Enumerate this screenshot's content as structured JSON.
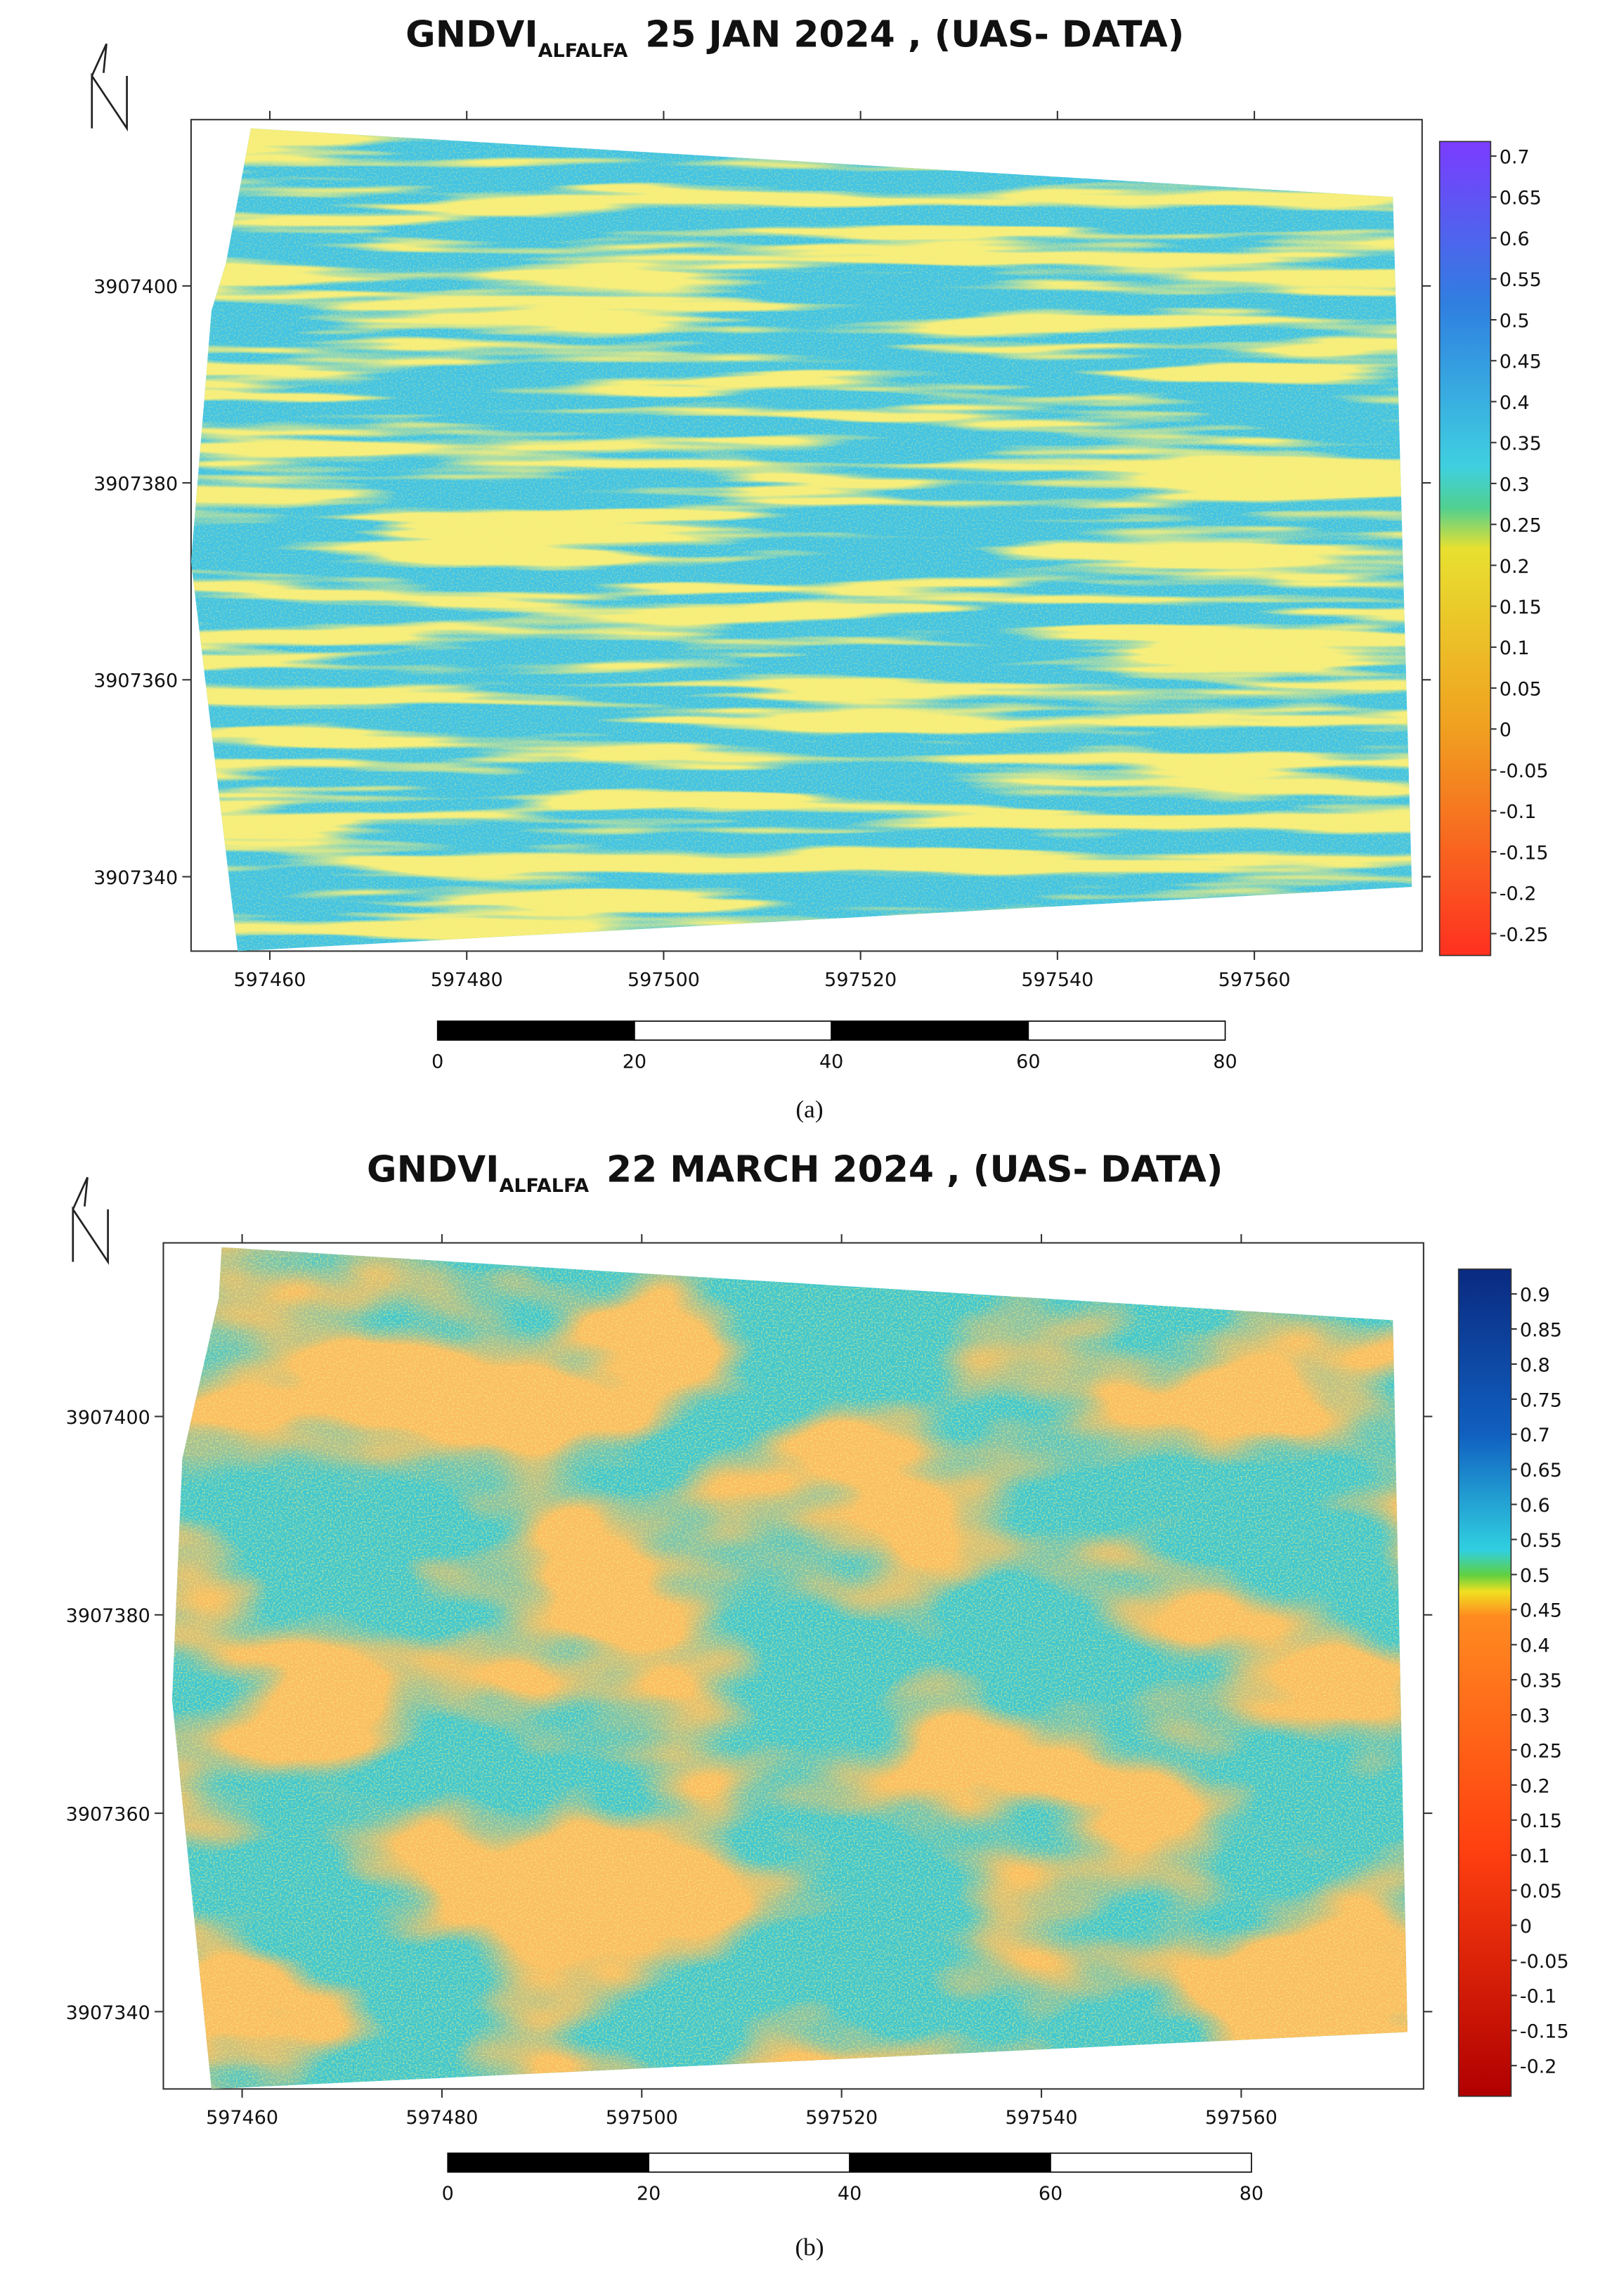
{
  "panels": [
    {
      "title": {
        "prefix": "GNDVI",
        "subscript": "ALFALFA",
        "text": "25 JAN 2024 , (UAS- DATA)"
      },
      "x_ticks": [
        597460,
        597480,
        597500,
        597520,
        597540,
        597560
      ],
      "y_ticks": [
        3907400,
        3907380,
        3907360,
        3907340
      ],
      "colorbar_ticks": [
        0.7,
        0.65,
        0.6,
        0.55,
        0.5,
        0.45,
        0.4,
        0.35,
        0.3,
        0.25,
        0.2,
        0.15,
        0.1,
        0.05,
        0,
        -0.05,
        -0.1,
        -0.15,
        -0.2,
        -0.25
      ],
      "scale_bar_ticks": [
        0,
        20,
        40,
        60,
        80
      ],
      "caption": "(a)"
    },
    {
      "title": {
        "prefix": "GNDVI",
        "subscript": "ALFALFA",
        "text": "22 MARCH 2024 , (UAS- DATA)"
      },
      "x_ticks": [
        597460,
        597480,
        597500,
        597520,
        597540,
        597560
      ],
      "y_ticks": [
        3907400,
        3907380,
        3907360,
        3907340
      ],
      "colorbar_ticks": [
        0.9,
        0.85,
        0.8,
        0.75,
        0.7,
        0.65,
        0.6,
        0.55,
        0.5,
        0.45,
        0.4,
        0.35,
        0.3,
        0.25,
        0.2,
        0.15,
        0.1,
        0.05,
        0,
        -0.05,
        -0.1,
        -0.15,
        -0.2
      ],
      "scale_bar_ticks": [
        0,
        20,
        40,
        60,
        80
      ],
      "caption": "(b)"
    }
  ]
}
